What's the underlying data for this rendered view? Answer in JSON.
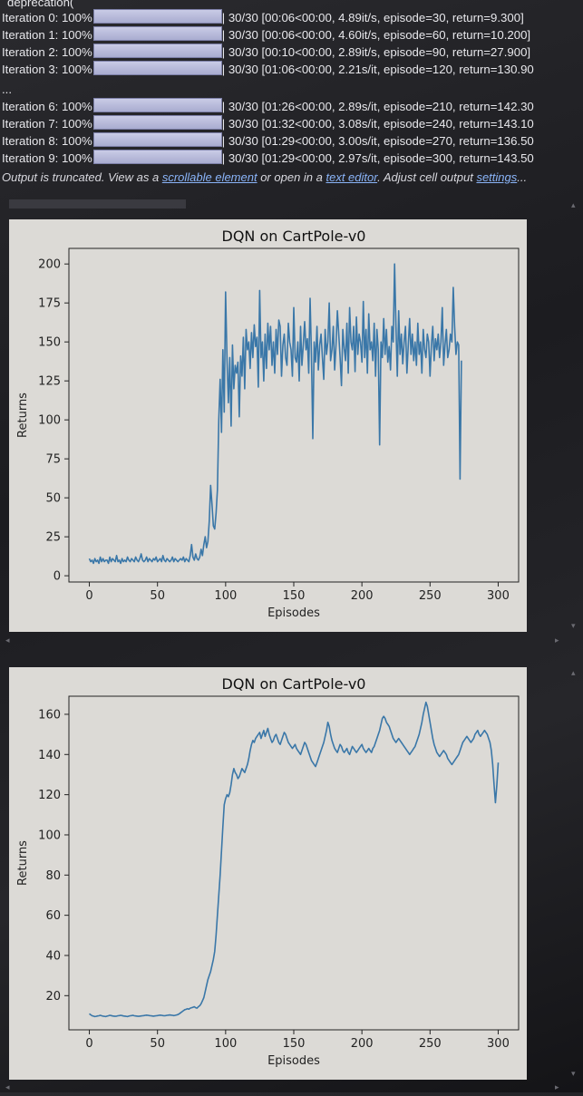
{
  "log": {
    "header": "deprecation(",
    "lines": [
      {
        "prefix": "Iteration 0: 100%",
        "suffix": "30/30 [00:06<00:00,  4.89it/s, episode=30, return=9.300]"
      },
      {
        "prefix": "Iteration 1: 100%",
        "suffix": "30/30 [00:06<00:00,  4.60it/s, episode=60, return=10.200]"
      },
      {
        "prefix": "Iteration 2: 100%",
        "suffix": "30/30 [00:10<00:00,  2.89it/s, episode=90, return=27.900]"
      },
      {
        "prefix": "Iteration 3: 100%",
        "suffix": "30/30 [01:06<00:00,  2.21s/it, episode=120, return=130.90"
      }
    ],
    "ellipsis": "...",
    "lines2": [
      {
        "prefix": "Iteration 6: 100%",
        "suffix": "30/30 [01:26<00:00,  2.89s/it, episode=210, return=142.30"
      },
      {
        "prefix": "Iteration 7: 100%",
        "suffix": "30/30 [01:32<00:00,  3.08s/it, episode=240, return=143.10"
      },
      {
        "prefix": "Iteration 8: 100%",
        "suffix": "30/30 [01:29<00:00,  3.00s/it, episode=270, return=136.50"
      },
      {
        "prefix": "Iteration 9: 100%",
        "suffix": "30/30 [01:29<00:00,  2.97s/it, episode=300, return=143.50"
      }
    ]
  },
  "truncation": {
    "text1": "Output is truncated. View as a ",
    "link1": "scrollable element",
    "text2": " or open in a ",
    "link2": "text editor",
    "text3": ". Adjust cell output ",
    "link3": "settings",
    "text4": "..."
  },
  "chart_data": [
    {
      "type": "line",
      "title": "DQN on CartPole-v0",
      "xlabel": "Episodes",
      "ylabel": "Returns",
      "xlim": [
        -15,
        315
      ],
      "ylim": [
        -4,
        210
      ],
      "xticks": [
        0,
        50,
        100,
        150,
        200,
        250,
        300
      ],
      "yticks": [
        0,
        25,
        50,
        75,
        100,
        125,
        150,
        175,
        200
      ],
      "color": "#3a77a8",
      "x_start": 0,
      "values": [
        11,
        9,
        10,
        8,
        11,
        9,
        10,
        8,
        12,
        9,
        11,
        9,
        10,
        10,
        8,
        12,
        9,
        11,
        10,
        9,
        13,
        9,
        10,
        8,
        11,
        9,
        10,
        9,
        12,
        10,
        9,
        11,
        10,
        9,
        12,
        10,
        9,
        11,
        14,
        10,
        9,
        10,
        12,
        9,
        11,
        10,
        9,
        11,
        10,
        12,
        9,
        10,
        11,
        9,
        13,
        10,
        9,
        11,
        10,
        9,
        10,
        12,
        9,
        11,
        10,
        9,
        10,
        11,
        10,
        12,
        9,
        11,
        10,
        9,
        13,
        20,
        12,
        10,
        14,
        11,
        10,
        12,
        17,
        13,
        20,
        25,
        18,
        22,
        35,
        58,
        46,
        32,
        30,
        40,
        55,
        100,
        126,
        92,
        145,
        105,
        182,
        138,
        111,
        140,
        96,
        148,
        120,
        135,
        130,
        137,
        102,
        141,
        128,
        153,
        120,
        158,
        145,
        150,
        133,
        156,
        140,
        161,
        147,
        153,
        121,
        183,
        140,
        150,
        125,
        155,
        133,
        162,
        145,
        160,
        135,
        150,
        130,
        158,
        142,
        164,
        160,
        128,
        148,
        155,
        140,
        135,
        162,
        150,
        145,
        128,
        172,
        140,
        137,
        150,
        125,
        160,
        135,
        148,
        163,
        145,
        152,
        130,
        178,
        142,
        88,
        150,
        137,
        160,
        132,
        148,
        155,
        140,
        126,
        158,
        142,
        150,
        175,
        138,
        145,
        160,
        132,
        148,
        170,
        155,
        140,
        122,
        158,
        146,
        138,
        162,
        130,
        172,
        150,
        145,
        160,
        131,
        166,
        142,
        155,
        150,
        137,
        176,
        140,
        158,
        130,
        168,
        145,
        150,
        138,
        162,
        128,
        158,
        145,
        84,
        150,
        140,
        165,
        142,
        158,
        137,
        147,
        132,
        160,
        150,
        200,
        160,
        128,
        170,
        142,
        155,
        136,
        150,
        160,
        130,
        148,
        165,
        142,
        155,
        138,
        150,
        135,
        162,
        142,
        150,
        130,
        158,
        145,
        140,
        155,
        150,
        128,
        148,
        160,
        138,
        152,
        145,
        155,
        140,
        150,
        172,
        135,
        148,
        158,
        140,
        145,
        155,
        150,
        185,
        160,
        142,
        150,
        148,
        62,
        138
      ]
    },
    {
      "type": "line",
      "title": "DQN on CartPole-v0",
      "xlabel": "Episodes",
      "ylabel": "Returns",
      "xlim": [
        -15,
        315
      ],
      "ylim": [
        3,
        169
      ],
      "xticks": [
        0,
        50,
        100,
        150,
        200,
        250,
        300
      ],
      "yticks": [
        20,
        40,
        60,
        80,
        100,
        120,
        140,
        160
      ],
      "color": "#3a77a8",
      "x_start": 0,
      "values": [
        11,
        10.5,
        10,
        9.8,
        9.6,
        9.7,
        9.9,
        10,
        10.2,
        10,
        9.8,
        9.7,
        9.6,
        9.8,
        10,
        10.2,
        10.1,
        9.9,
        9.8,
        9.7,
        9.8,
        10,
        10.1,
        10.2,
        10.1,
        9.9,
        9.8,
        9.7,
        9.6,
        9.8,
        10,
        10.1,
        10.2,
        10,
        9.9,
        9.8,
        9.7,
        9.8,
        9.9,
        10,
        10.1,
        10.2,
        10.3,
        10.2,
        10.1,
        10,
        9.9,
        9.8,
        9.9,
        10,
        10.1,
        10.2,
        10.3,
        10.2,
        10.1,
        10,
        10.1,
        10.2,
        10.3,
        10.4,
        10.3,
        10.2,
        10.1,
        10.2,
        10.4,
        10.6,
        11,
        11.5,
        12,
        12.5,
        13,
        13.2,
        13.5,
        13.3,
        13.8,
        14,
        14.2,
        14.5,
        14,
        13.8,
        14.5,
        15,
        16,
        17.5,
        19,
        22,
        25,
        28,
        30,
        32,
        35,
        38,
        42,
        50,
        60,
        70,
        80,
        92,
        104,
        115,
        118,
        120,
        119,
        121,
        125,
        130,
        133,
        131,
        130,
        128,
        129,
        131,
        133,
        132,
        131,
        133,
        135,
        138,
        142,
        145,
        147,
        146,
        148,
        149,
        150,
        151,
        148,
        150,
        152,
        149,
        151,
        153,
        150,
        148,
        146,
        147,
        149,
        150,
        148,
        146,
        145,
        147,
        149,
        151,
        150,
        148,
        146,
        145,
        144,
        143,
        144,
        145,
        143,
        142,
        141,
        140,
        142,
        144,
        146,
        145,
        143,
        141,
        139,
        137,
        136,
        135,
        134,
        136,
        138,
        140,
        142,
        144,
        146,
        149,
        152,
        156,
        154,
        150,
        147,
        145,
        143,
        142,
        141,
        143,
        145,
        144,
        142,
        141,
        142,
        143,
        141,
        140,
        142,
        144,
        143,
        142,
        141,
        142,
        143,
        144,
        145,
        143,
        142,
        141,
        142,
        143,
        142,
        141,
        143,
        144,
        146,
        148,
        150,
        152,
        155,
        158,
        159,
        158,
        156,
        155,
        154,
        152,
        150,
        148,
        147,
        146,
        147,
        148,
        147,
        146,
        145,
        144,
        143,
        142,
        141,
        140,
        141,
        142,
        143,
        144,
        146,
        148,
        150,
        153,
        156,
        160,
        163,
        166,
        164,
        160,
        156,
        152,
        148,
        145,
        143,
        141,
        140,
        139,
        140,
        141,
        142,
        141,
        140,
        138,
        137,
        136,
        135,
        136,
        137,
        138,
        139,
        140,
        142,
        144,
        146,
        147,
        148,
        149,
        148,
        147,
        146,
        147,
        148,
        150,
        151,
        152,
        150,
        149,
        150,
        151,
        152,
        151,
        150,
        148,
        146,
        142,
        135,
        125,
        116,
        125,
        136
      ]
    }
  ]
}
